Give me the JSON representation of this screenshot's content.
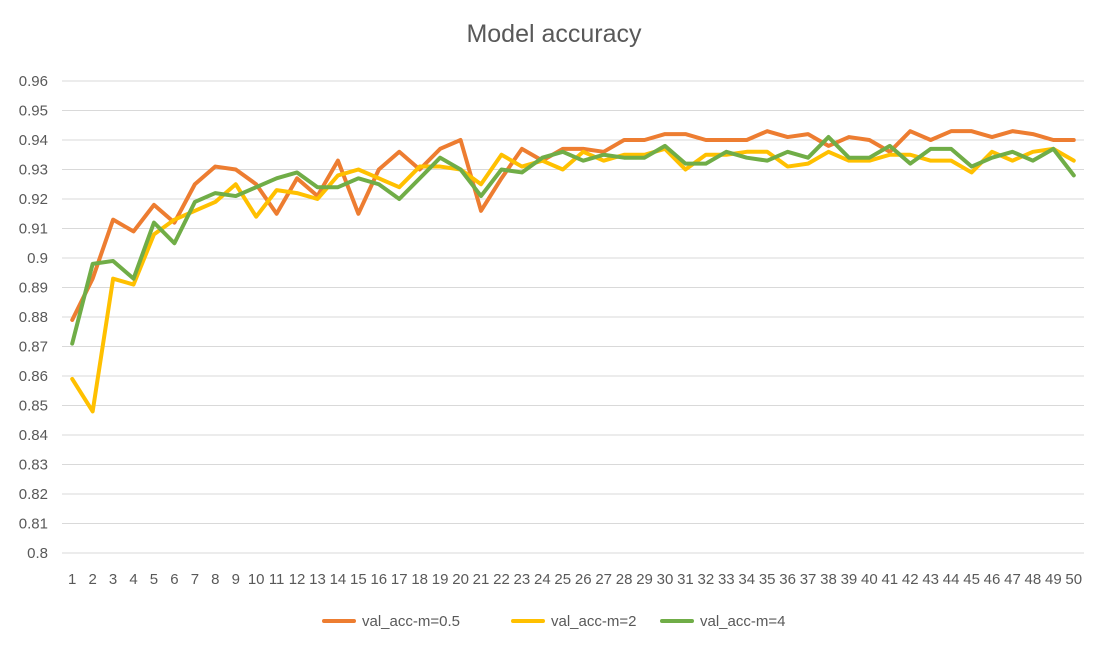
{
  "chart_data": {
    "type": "line",
    "title": "Model accuracy",
    "xlabel": "",
    "ylabel": "",
    "ylim": [
      0.8,
      0.96
    ],
    "yticks": [
      "0.8",
      "0.81",
      "0.82",
      "0.83",
      "0.84",
      "0.85",
      "0.86",
      "0.87",
      "0.88",
      "0.89",
      "0.9",
      "0.91",
      "0.92",
      "0.93",
      "0.94",
      "0.95",
      "0.96"
    ],
    "x": [
      "1",
      "2",
      "3",
      "4",
      "5",
      "6",
      "7",
      "8",
      "9",
      "10",
      "11",
      "12",
      "13",
      "14",
      "15",
      "16",
      "17",
      "18",
      "19",
      "20",
      "21",
      "22",
      "23",
      "24",
      "25",
      "26",
      "27",
      "28",
      "29",
      "30",
      "31",
      "32",
      "33",
      "34",
      "35",
      "36",
      "37",
      "38",
      "39",
      "40",
      "41",
      "42",
      "43",
      "44",
      "45",
      "46",
      "47",
      "48",
      "49",
      "50"
    ],
    "grid": true,
    "legend_position": "bottom",
    "series": [
      {
        "name": "val_acc-m=0.5",
        "color": "#ED7D31",
        "values": [
          0.879,
          0.893,
          0.913,
          0.909,
          0.918,
          0.912,
          0.925,
          0.931,
          0.93,
          0.925,
          0.915,
          0.927,
          0.921,
          0.933,
          0.915,
          0.93,
          0.936,
          0.93,
          0.937,
          0.94,
          0.916,
          0.927,
          0.937,
          0.933,
          0.937,
          0.937,
          0.936,
          0.94,
          0.94,
          0.942,
          0.942,
          0.94,
          0.94,
          0.94,
          0.943,
          0.941,
          0.942,
          0.938,
          0.941,
          0.94,
          0.936,
          0.943,
          0.94,
          0.943,
          0.943,
          0.941,
          0.943,
          0.942,
          0.94,
          0.94
        ]
      },
      {
        "name": "val_acc-m=2",
        "color": "#FFC000",
        "values": [
          0.859,
          0.848,
          0.893,
          0.891,
          0.908,
          0.913,
          0.916,
          0.919,
          0.925,
          0.914,
          0.923,
          0.922,
          0.92,
          0.928,
          0.93,
          0.927,
          0.924,
          0.931,
          0.931,
          0.93,
          0.925,
          0.935,
          0.931,
          0.933,
          0.93,
          0.936,
          0.933,
          0.935,
          0.935,
          0.937,
          0.93,
          0.935,
          0.935,
          0.936,
          0.936,
          0.931,
          0.932,
          0.936,
          0.933,
          0.933,
          0.935,
          0.935,
          0.933,
          0.933,
          0.929,
          0.936,
          0.933,
          0.936,
          0.937,
          0.933
        ]
      },
      {
        "name": "val_acc-m=4",
        "color": "#70AD47",
        "values": [
          0.871,
          0.898,
          0.899,
          0.893,
          0.912,
          0.905,
          0.919,
          0.922,
          0.921,
          0.924,
          0.927,
          0.929,
          0.924,
          0.924,
          0.927,
          0.925,
          0.92,
          0.927,
          0.934,
          0.93,
          0.921,
          0.93,
          0.929,
          0.934,
          0.936,
          0.933,
          0.935,
          0.934,
          0.934,
          0.938,
          0.932,
          0.932,
          0.936,
          0.934,
          0.933,
          0.936,
          0.934,
          0.941,
          0.934,
          0.934,
          0.938,
          0.932,
          0.937,
          0.937,
          0.931,
          0.934,
          0.936,
          0.933,
          0.937,
          0.928
        ]
      }
    ]
  }
}
